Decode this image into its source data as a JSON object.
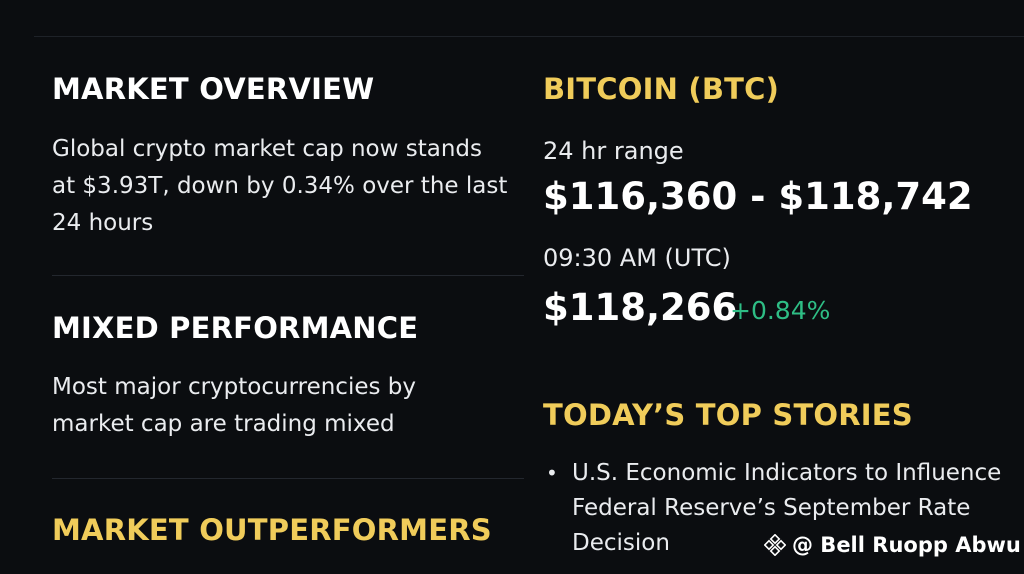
{
  "left": {
    "market_overview": {
      "heading": "MARKET OVERVIEW",
      "body": "Global crypto market cap now stands at $3.93T, down by 0.34% over the last 24 hours"
    },
    "mixed_performance": {
      "heading": "MIXED PERFORMANCE",
      "body": "Most major cryptocurrencies by market cap are trading mixed"
    },
    "outperformers": {
      "heading": "MARKET OUTPERFORMERS"
    }
  },
  "right": {
    "bitcoin": {
      "heading": "BITCOIN (BTC)",
      "range_label": "24 hr range",
      "range_value": "$116,360 - $118,742",
      "time_label": "09:30 AM (UTC)",
      "price": "$118,266",
      "change": "+0.84%"
    },
    "stories": {
      "heading": "TODAY’S TOP STORIES",
      "items": [
        {
          "bullet": "•",
          "text": "U.S. Economic Indicators to Influence Federal Reserve’s September Rate Decision"
        }
      ]
    }
  },
  "watermark": {
    "text": "@ Bell Ruopp Abwu",
    "icon": "binance-logo-icon"
  },
  "colors": {
    "background": "#0b0d10",
    "heading_white": "#ffffff",
    "heading_gold": "#f0cc5a",
    "positive": "#2ebd85",
    "divider": "#23272e"
  }
}
